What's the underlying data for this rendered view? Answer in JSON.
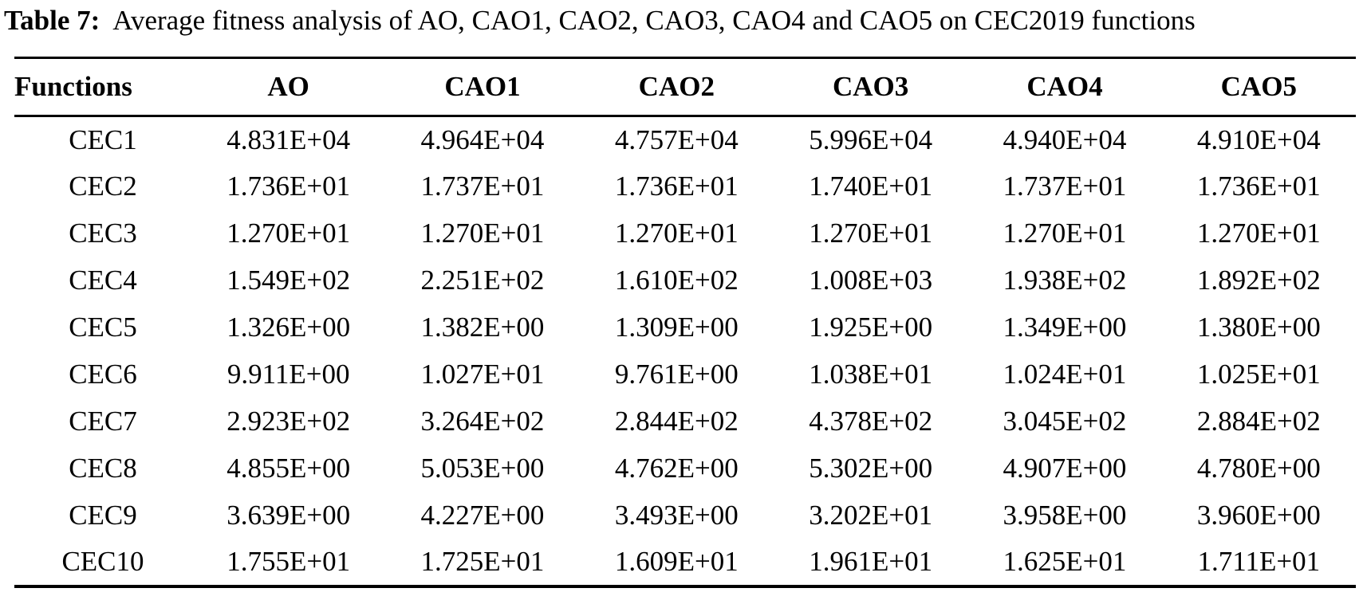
{
  "page": {
    "background": "#ffffff",
    "text_color": "#000000"
  },
  "table": {
    "label": "Table 7:",
    "caption": "Average fitness analysis of AO, CAO1, CAO2, CAO3, CAO4 and CAO5 on CEC2019 functions",
    "columns": [
      "Functions",
      "AO",
      "CAO1",
      "CAO2",
      "CAO3",
      "CAO4",
      "CAO5"
    ],
    "rows": [
      {
        "function": "CEC1",
        "values": [
          "4.831E+04",
          "4.964E+04",
          "4.757E+04",
          "5.996E+04",
          "4.940E+04",
          "4.910E+04"
        ]
      },
      {
        "function": "CEC2",
        "values": [
          "1.736E+01",
          "1.737E+01",
          "1.736E+01",
          "1.740E+01",
          "1.737E+01",
          "1.736E+01"
        ]
      },
      {
        "function": "CEC3",
        "values": [
          "1.270E+01",
          "1.270E+01",
          "1.270E+01",
          "1.270E+01",
          "1.270E+01",
          "1.270E+01"
        ]
      },
      {
        "function": "CEC4",
        "values": [
          "1.549E+02",
          "2.251E+02",
          "1.610E+02",
          "1.008E+03",
          "1.938E+02",
          "1.892E+02"
        ]
      },
      {
        "function": "CEC5",
        "values": [
          "1.326E+00",
          "1.382E+00",
          "1.309E+00",
          "1.925E+00",
          "1.349E+00",
          "1.380E+00"
        ]
      },
      {
        "function": "CEC6",
        "values": [
          "9.911E+00",
          "1.027E+01",
          "9.761E+00",
          "1.038E+01",
          "1.024E+01",
          "1.025E+01"
        ]
      },
      {
        "function": "CEC7",
        "values": [
          "2.923E+02",
          "3.264E+02",
          "2.844E+02",
          "4.378E+02",
          "3.045E+02",
          "2.884E+02"
        ]
      },
      {
        "function": "CEC8",
        "values": [
          "4.855E+00",
          "5.053E+00",
          "4.762E+00",
          "5.302E+00",
          "4.907E+00",
          "4.780E+00"
        ]
      },
      {
        "function": "CEC9",
        "values": [
          "3.639E+00",
          "4.227E+00",
          "3.493E+00",
          "3.202E+01",
          "3.958E+00",
          "3.960E+00"
        ]
      },
      {
        "function": "CEC10",
        "values": [
          "1.755E+01",
          "1.725E+01",
          "1.609E+01",
          "1.961E+01",
          "1.625E+01",
          "1.711E+01"
        ]
      }
    ]
  },
  "chart_data": {
    "type": "table",
    "title": "Table 7: Average fitness analysis of AO, CAO1, CAO2, CAO3, CAO4 and CAO5 on CEC2019 functions",
    "columns": [
      "Functions",
      "AO",
      "CAO1",
      "CAO2",
      "CAO3",
      "CAO4",
      "CAO5"
    ],
    "rows": [
      [
        "CEC1",
        "4.831E+04",
        "4.964E+04",
        "4.757E+04",
        "5.996E+04",
        "4.940E+04",
        "4.910E+04"
      ],
      [
        "CEC2",
        "1.736E+01",
        "1.737E+01",
        "1.736E+01",
        "1.740E+01",
        "1.737E+01",
        "1.736E+01"
      ],
      [
        "CEC3",
        "1.270E+01",
        "1.270E+01",
        "1.270E+01",
        "1.270E+01",
        "1.270E+01",
        "1.270E+01"
      ],
      [
        "CEC4",
        "1.549E+02",
        "2.251E+02",
        "1.610E+02",
        "1.008E+03",
        "1.938E+02",
        "1.892E+02"
      ],
      [
        "CEC5",
        "1.326E+00",
        "1.382E+00",
        "1.309E+00",
        "1.925E+00",
        "1.349E+00",
        "1.380E+00"
      ],
      [
        "CEC6",
        "9.911E+00",
        "1.027E+01",
        "9.761E+00",
        "1.038E+01",
        "1.024E+01",
        "1.025E+01"
      ],
      [
        "CEC7",
        "2.923E+02",
        "3.264E+02",
        "2.844E+02",
        "4.378E+02",
        "3.045E+02",
        "2.884E+02"
      ],
      [
        "CEC8",
        "4.855E+00",
        "5.053E+00",
        "4.762E+00",
        "5.302E+00",
        "4.907E+00",
        "4.780E+00"
      ],
      [
        "CEC9",
        "3.639E+00",
        "4.227E+00",
        "3.493E+00",
        "3.202E+01",
        "3.958E+00",
        "3.960E+00"
      ],
      [
        "CEC10",
        "1.755E+01",
        "1.725E+01",
        "1.609E+01",
        "1.961E+01",
        "1.625E+01",
        "1.711E+01"
      ]
    ]
  }
}
